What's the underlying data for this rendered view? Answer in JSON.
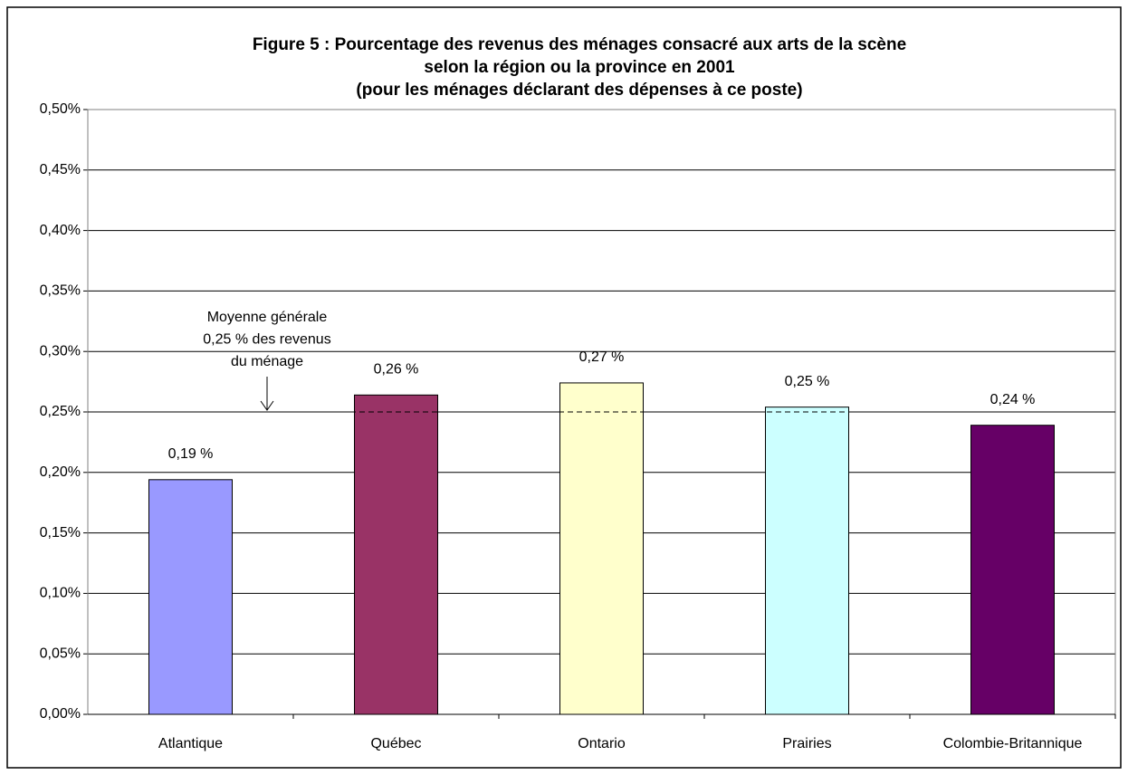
{
  "chart_data": {
    "type": "bar",
    "title": [
      "Figure 5 : Pourcentage des revenus des ménages consacré aux arts de la scène",
      "selon la région ou la province en 2001",
      "(pour les ménages déclarant des dépenses à ce poste)"
    ],
    "categories": [
      "Atlantique",
      "Québec",
      "Ontario",
      "Prairies",
      "Colombie-Britannique"
    ],
    "values": [
      0.194,
      0.264,
      0.274,
      0.254,
      0.239
    ],
    "value_labels": [
      "0,19 %",
      "0,26 %",
      "0,27 %",
      "0,25 %",
      "0,24 %"
    ],
    "colors": [
      "#9999ff",
      "#993366",
      "#ffffcc",
      "#ccffff",
      "#660066"
    ],
    "ylim": [
      0,
      0.5
    ],
    "yticks": [
      {
        "value": 0,
        "label": "0,00%"
      },
      {
        "value": 0.05,
        "label": "0,05%"
      },
      {
        "value": 0.1,
        "label": "0,10%"
      },
      {
        "value": 0.15,
        "label": "0,15%"
      },
      {
        "value": 0.2,
        "label": "0,20%"
      },
      {
        "value": 0.25,
        "label": "0,25%"
      },
      {
        "value": 0.3,
        "label": "0,30%"
      },
      {
        "value": 0.35,
        "label": "0,35%"
      },
      {
        "value": 0.4,
        "label": "0,40%"
      },
      {
        "value": 0.45,
        "label": "0,45%"
      },
      {
        "value": 0.5,
        "label": "0,50%"
      }
    ],
    "grid": true,
    "reference_line": {
      "value": 0.25,
      "label": [
        "Moyenne générale",
        "0,25 % des revenus",
        "du ménage"
      ]
    }
  }
}
